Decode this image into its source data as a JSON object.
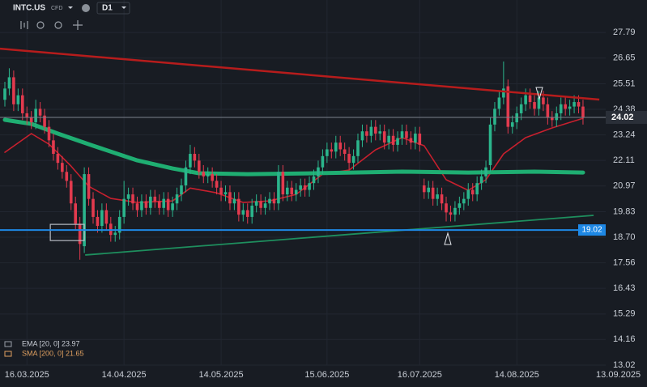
{
  "toolbar": {
    "symbol": "INTC.US",
    "instrument_type": "CFD",
    "timeframe": "D1"
  },
  "chart_data": {
    "type": "candlestick",
    "up_color": "#2bb58c",
    "down_color": "#e23a4e",
    "grid": true,
    "xlim": [
      -1.1,
      145.5
    ],
    "xticks": [
      {
        "value": 5,
        "label": "16.03.2025"
      },
      {
        "value": 27,
        "label": "14.04.2025"
      },
      {
        "value": 49,
        "label": "14.05.2025"
      },
      {
        "value": 73,
        "label": "15.06.2025"
      },
      {
        "value": 94,
        "label": "16.07.2025"
      },
      {
        "value": 116,
        "label": "14.08.2025"
      },
      {
        "value": 139,
        "label": "13.09.2025"
      }
    ],
    "ylim": [
      13.02,
      29.23
    ],
    "yticks": [
      27.79,
      26.65,
      25.51,
      24.38,
      23.24,
      22.11,
      20.97,
      19.83,
      {
        "value": 18.7,
        "label": "18.70"
      },
      17.56,
      16.43,
      15.29,
      14.16,
      13.02
    ],
    "candles": {
      "open": [
        24.8,
        25.3,
        25.8,
        24.6,
        25.0,
        24.2,
        24.0,
        23.8,
        24.4,
        24.1,
        23.6,
        23.0,
        22.4,
        22.0,
        21.6,
        21.2,
        20.2,
        19.3,
        18.3,
        21.5,
        20.4,
        19.6,
        19.2,
        19.9,
        19.3,
        18.8,
        18.9,
        19.6,
        20.4,
        20.6,
        20.2,
        19.9,
        20.3,
        20.0,
        20.5,
        20.3,
        20.0,
        20.4,
        19.9,
        20.2,
        20.6,
        21.0,
        21.8,
        22.4,
        22.1,
        21.6,
        21.4,
        21.5,
        21.2,
        20.9,
        20.6,
        20.7,
        20.2,
        20.4,
        19.7,
        19.9,
        19.6,
        20.1,
        20.3,
        20.0,
        20.2,
        20.4,
        20.2,
        21.6,
        20.6,
        20.9,
        20.6,
        20.8,
        21.0,
        20.8,
        21.1,
        21.4,
        21.8,
        22.3,
        22.6,
        22.5,
        22.9,
        22.6,
        22.4,
        22.0,
        22.3,
        23.0,
        23.4,
        23.2,
        23.6,
        23.3,
        23.4,
        22.9,
        23.2,
        22.8,
        23.1,
        23.4,
        23.1,
        22.9,
        23.3,
        21.0,
        20.7,
        20.9,
        20.4,
        20.6,
        20.2,
        19.8,
        19.7,
        20.0,
        20.2,
        20.4,
        20.8,
        20.6,
        21.1,
        21.4,
        21.9,
        23.7,
        24.4,
        24.9,
        25.4,
        23.6,
        23.8,
        24.2,
        24.6,
        25.0,
        24.7,
        24.4,
        24.9,
        24.6,
        24.0,
        23.9,
        24.2,
        24.6,
        24.4,
        24.5,
        24.7,
        24.5
      ],
      "high": [
        25.6,
        26.2,
        26.1,
        25.3,
        25.3,
        24.5,
        24.3,
        24.8,
        24.7,
        24.4,
        23.9,
        23.3,
        22.7,
        22.3,
        21.9,
        21.5,
        20.5,
        19.6,
        21.8,
        21.8,
        20.7,
        19.9,
        20.2,
        20.2,
        19.6,
        19.2,
        19.9,
        21.2,
        20.9,
        20.9,
        20.5,
        20.6,
        20.6,
        20.8,
        20.8,
        20.6,
        20.7,
        20.7,
        20.5,
        20.9,
        21.3,
        22.1,
        22.8,
        22.7,
        22.4,
        21.9,
        21.8,
        21.8,
        21.5,
        21.2,
        21.0,
        21.0,
        20.7,
        20.7,
        20.2,
        20.2,
        20.4,
        20.6,
        20.6,
        20.5,
        20.7,
        20.7,
        21.9,
        21.9,
        21.2,
        21.2,
        21.1,
        21.3,
        21.3,
        21.4,
        21.7,
        22.1,
        22.6,
        22.9,
        22.9,
        23.2,
        23.2,
        22.9,
        22.7,
        22.6,
        23.3,
        23.7,
        23.7,
        23.9,
        23.9,
        23.7,
        23.7,
        23.5,
        23.5,
        23.4,
        23.7,
        23.7,
        23.4,
        23.6,
        23.6,
        21.3,
        21.2,
        21.2,
        20.9,
        20.9,
        20.5,
        20.1,
        20.3,
        20.5,
        20.7,
        21.1,
        21.1,
        21.4,
        21.7,
        22.1,
        24.0,
        24.7,
        25.2,
        26.5,
        25.7,
        24.1,
        24.5,
        24.9,
        25.3,
        25.3,
        25.0,
        25.2,
        25.2,
        24.9,
        24.3,
        24.5,
        24.9,
        24.9,
        24.8,
        25.0,
        25.0,
        24.8
      ],
      "low": [
        24.5,
        25.0,
        24.3,
        24.3,
        23.9,
        23.7,
        23.5,
        23.5,
        23.8,
        23.3,
        22.7,
        22.1,
        21.7,
        21.3,
        20.9,
        19.9,
        19.0,
        17.7,
        18.0,
        20.1,
        19.3,
        18.9,
        18.9,
        19.0,
        18.5,
        18.5,
        18.6,
        19.3,
        20.1,
        19.9,
        19.6,
        19.6,
        19.7,
        19.7,
        20.0,
        19.7,
        19.7,
        19.6,
        19.6,
        19.9,
        20.3,
        20.7,
        21.5,
        21.8,
        21.3,
        21.1,
        21.1,
        20.9,
        20.6,
        20.3,
        20.3,
        19.9,
        19.9,
        19.4,
        19.4,
        19.3,
        19.3,
        19.8,
        19.7,
        19.7,
        19.9,
        19.9,
        19.9,
        20.3,
        20.3,
        20.3,
        20.3,
        20.5,
        20.5,
        20.5,
        20.8,
        21.1,
        21.5,
        22.0,
        22.2,
        22.2,
        22.3,
        22.1,
        21.7,
        21.7,
        22.0,
        22.7,
        22.9,
        22.9,
        23.0,
        23.0,
        22.6,
        22.6,
        22.5,
        22.5,
        22.8,
        22.8,
        22.6,
        22.6,
        22.5,
        20.4,
        20.4,
        20.1,
        20.1,
        19.9,
        19.4,
        19.4,
        19.4,
        19.7,
        19.9,
        20.1,
        20.3,
        20.3,
        20.8,
        21.1,
        21.6,
        23.4,
        24.1,
        24.6,
        23.3,
        23.3,
        23.5,
        23.9,
        24.3,
        24.4,
        24.1,
        24.1,
        24.3,
        23.7,
        23.6,
        23.6,
        23.9,
        24.1,
        24.1,
        24.2,
        24.2,
        23.7
      ],
      "close": [
        25.3,
        25.8,
        24.6,
        25.0,
        24.2,
        24.0,
        23.8,
        24.4,
        24.1,
        23.6,
        23.0,
        22.4,
        22.0,
        21.6,
        21.2,
        20.2,
        19.3,
        18.4,
        21.5,
        20.4,
        19.6,
        19.2,
        19.9,
        19.3,
        18.8,
        18.9,
        19.6,
        20.4,
        20.6,
        20.2,
        19.9,
        20.3,
        20.0,
        20.5,
        20.3,
        20.0,
        20.4,
        19.9,
        20.2,
        20.6,
        21.0,
        21.8,
        22.4,
        22.1,
        21.6,
        21.4,
        21.5,
        21.2,
        20.9,
        20.6,
        20.7,
        20.2,
        20.4,
        19.7,
        19.9,
        19.6,
        20.1,
        20.3,
        20.0,
        20.2,
        20.4,
        20.2,
        21.6,
        20.6,
        20.9,
        20.6,
        20.8,
        21.0,
        20.8,
        21.1,
        21.4,
        21.8,
        22.3,
        22.6,
        22.5,
        22.9,
        22.6,
        22.4,
        22.0,
        22.3,
        23.0,
        23.4,
        23.2,
        23.6,
        23.3,
        23.4,
        22.9,
        23.2,
        22.8,
        23.1,
        23.4,
        23.1,
        22.9,
        23.3,
        22.8,
        20.7,
        20.9,
        20.4,
        20.6,
        20.2,
        19.8,
        19.7,
        20.0,
        20.2,
        20.4,
        20.8,
        20.6,
        21.1,
        21.4,
        21.8,
        23.7,
        24.4,
        24.9,
        25.3,
        23.6,
        23.8,
        24.2,
        24.6,
        25.0,
        24.7,
        24.4,
        24.9,
        24.6,
        24.0,
        23.9,
        24.2,
        24.6,
        24.4,
        24.5,
        24.7,
        24.5,
        24.02
      ]
    },
    "series": [
      {
        "name": "EMA [20, 0] 23.97",
        "color": "#c8202e",
        "width": 1.6,
        "x": [
          0,
          6,
          10,
          15,
          19,
          24,
          30,
          38,
          42,
          48,
          54,
          60,
          66,
          72,
          78,
          84,
          90,
          95,
          100,
          105,
          109,
          113,
          118,
          124,
          131
        ],
        "values": [
          22.47,
          23.3,
          22.83,
          21.86,
          20.96,
          20.42,
          20.24,
          20.31,
          20.88,
          20.67,
          20.24,
          20.31,
          20.6,
          21.5,
          21.68,
          22.58,
          23.12,
          22.76,
          21.25,
          20.78,
          21.25,
          22.4,
          23.12,
          23.55,
          23.98
        ]
      },
      {
        "name": "SMA [200, 0] 21.65",
        "color": "#1fae72",
        "width": 5,
        "x": [
          0,
          6,
          12,
          20,
          30,
          38,
          44,
          55,
          70,
          90,
          105,
          120,
          131
        ],
        "values": [
          23.91,
          23.73,
          23.3,
          22.76,
          22.11,
          21.75,
          21.54,
          21.5,
          21.54,
          21.61,
          21.57,
          21.61,
          21.57
        ]
      }
    ],
    "trendlines": [
      {
        "color": "#b71c1c",
        "x": [
          -1.1,
          134.7
        ],
        "y": [
          27.07,
          24.81
        ]
      },
      {
        "color": "#1e8f5e",
        "x": [
          18.2,
          133.4
        ],
        "y": [
          17.91,
          19.67
        ]
      }
    ],
    "hlines": [
      {
        "value": 19.02,
        "color": "#1e88e5"
      }
    ],
    "last_price": 24.02,
    "box": {
      "x": [
        10.3,
        18.0
      ],
      "y": [
        18.55,
        19.27
      ]
    }
  }
}
